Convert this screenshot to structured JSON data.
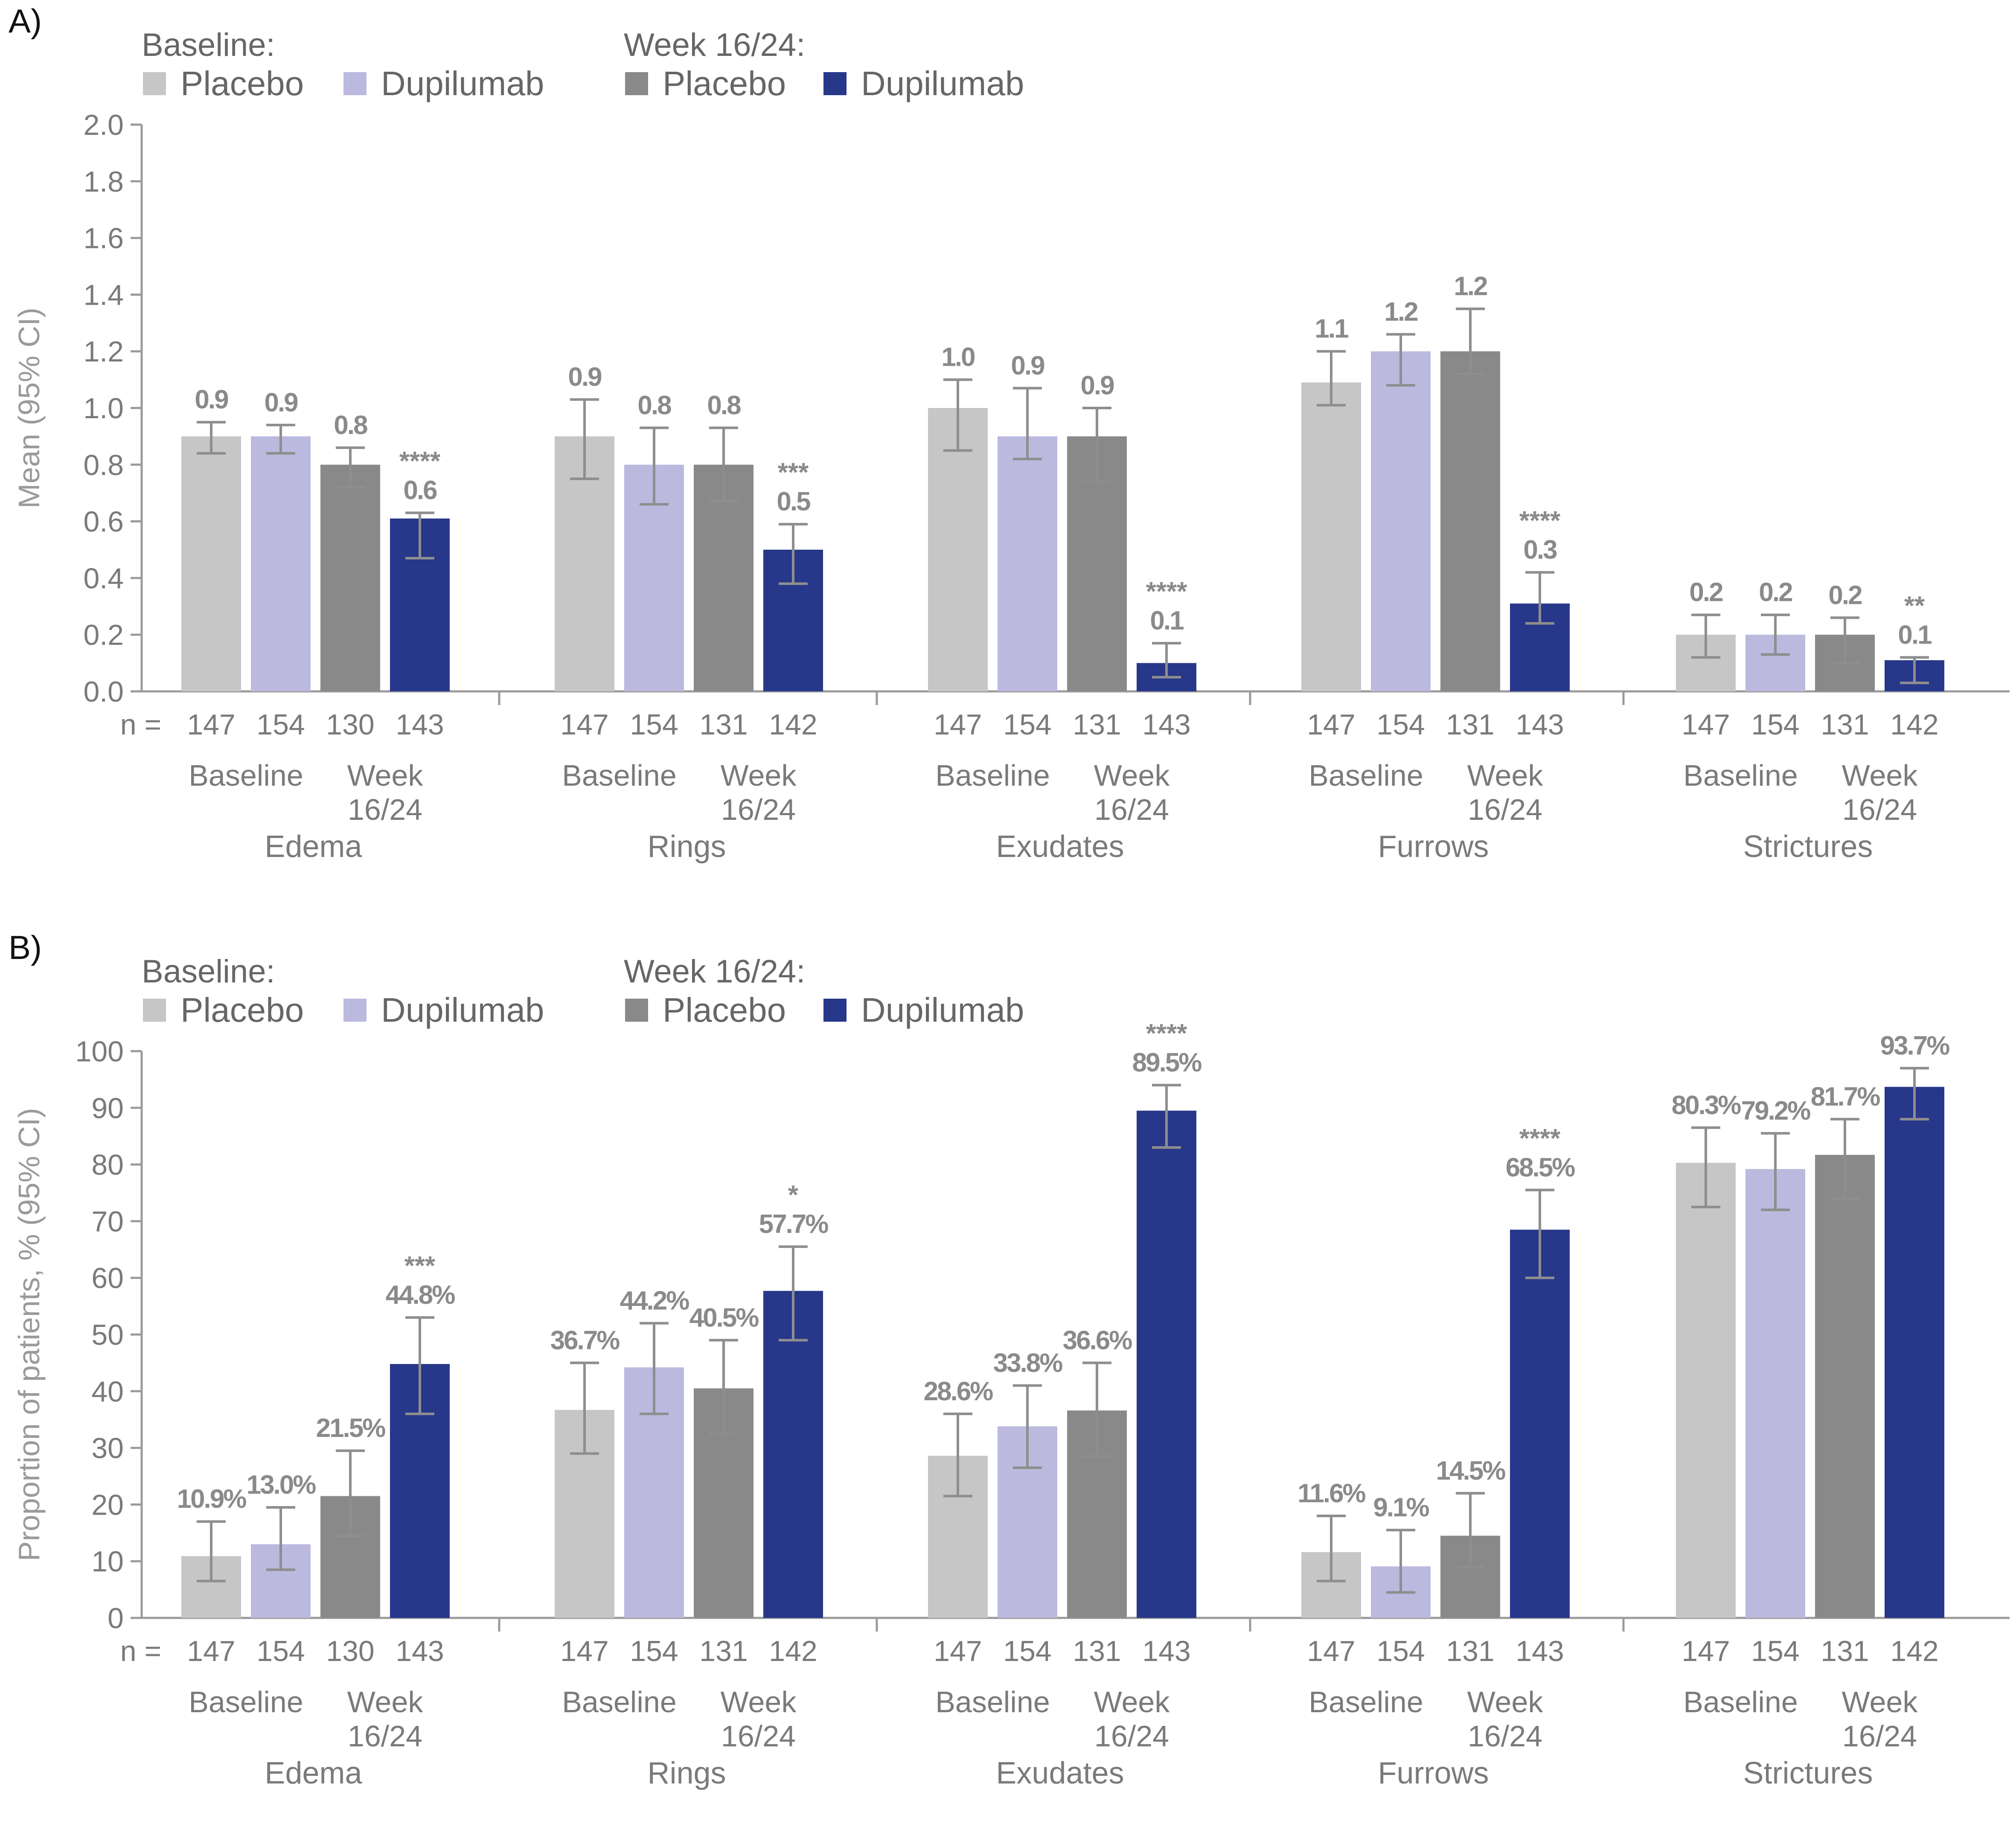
{
  "panels": [
    {
      "letter": "A)",
      "legend": {
        "baseline_label": "Baseline:",
        "week_label": "Week 16/24:",
        "items": [
          "Placebo",
          "Dupilumab",
          "Placebo",
          "Dupilumab"
        ]
      },
      "chart_data": {
        "type": "bar",
        "ylabel": "Mean (95% CI)",
        "ylim": [
          0,
          2.0
        ],
        "yticks": [
          "0.0",
          "0.2",
          "0.4",
          "0.6",
          "0.8",
          "1.0",
          "1.2",
          "1.4",
          "1.6",
          "1.8",
          "2.0"
        ],
        "grid": false,
        "legend_position": "top-left",
        "n_prefix": "n =",
        "timepoints": [
          "Baseline",
          "Week\n16/24"
        ],
        "series": [
          {
            "name": "Baseline Placebo",
            "color": "#c6c6c6"
          },
          {
            "name": "Baseline Dupilumab",
            "color": "#bcb9df"
          },
          {
            "name": "Week 16/24 Placebo",
            "color": "#898989"
          },
          {
            "name": "Week 16/24 Dupilumab",
            "color": "#27378a"
          }
        ],
        "groups": [
          {
            "category": "Edema",
            "values": [
              0.9,
              0.9,
              0.8,
              0.61
            ],
            "ci_low": [
              0.84,
              0.84,
              0.72,
              0.47
            ],
            "ci_high": [
              0.95,
              0.94,
              0.86,
              0.63
            ],
            "labels": [
              "0.9",
              "0.9",
              "0.8",
              "0.6"
            ],
            "sig": [
              "",
              "",
              "",
              "****"
            ],
            "n": [
              "147",
              "154",
              "130",
              "143"
            ]
          },
          {
            "category": "Rings",
            "values": [
              0.9,
              0.8,
              0.8,
              0.5
            ],
            "ci_low": [
              0.75,
              0.66,
              0.67,
              0.38
            ],
            "ci_high": [
              1.03,
              0.93,
              0.93,
              0.59
            ],
            "labels": [
              "0.9",
              "0.8",
              "0.8",
              "0.5"
            ],
            "sig": [
              "",
              "",
              "",
              "***"
            ],
            "n": [
              "147",
              "154",
              "131",
              "142"
            ]
          },
          {
            "category": "Exudates",
            "values": [
              1.0,
              0.9,
              0.9,
              0.1
            ],
            "ci_low": [
              0.85,
              0.82,
              0.74,
              0.05
            ],
            "ci_high": [
              1.1,
              1.07,
              1.0,
              0.17
            ],
            "labels": [
              "1.0",
              "0.9",
              "0.9",
              "0.1"
            ],
            "sig": [
              "",
              "",
              "",
              "****"
            ],
            "n": [
              "147",
              "154",
              "131",
              "143"
            ]
          },
          {
            "category": "Furrows",
            "values": [
              1.09,
              1.2,
              1.2,
              0.31
            ],
            "ci_low": [
              1.01,
              1.08,
              1.12,
              0.24
            ],
            "ci_high": [
              1.2,
              1.26,
              1.35,
              0.42
            ],
            "labels": [
              "1.1",
              "1.2",
              "1.2",
              "0.3"
            ],
            "sig": [
              "",
              "",
              "",
              "****"
            ],
            "n": [
              "147",
              "154",
              "131",
              "143"
            ]
          },
          {
            "category": "Strictures",
            "values": [
              0.2,
              0.2,
              0.2,
              0.11
            ],
            "ci_low": [
              0.12,
              0.13,
              0.1,
              0.03
            ],
            "ci_high": [
              0.27,
              0.27,
              0.26,
              0.12
            ],
            "labels": [
              "0.2",
              "0.2",
              "0.2",
              "0.1"
            ],
            "sig": [
              "",
              "",
              "",
              "**"
            ],
            "n": [
              "147",
              "154",
              "131",
              "142"
            ]
          }
        ]
      }
    },
    {
      "letter": "B)",
      "legend": {
        "baseline_label": "Baseline:",
        "week_label": "Week 16/24:",
        "items": [
          "Placebo",
          "Dupilumab",
          "Placebo",
          "Dupilumab"
        ]
      },
      "chart_data": {
        "type": "bar",
        "ylabel": "Proportion of patients, % (95% CI)",
        "ylim": [
          0,
          100
        ],
        "yticks": [
          "0",
          "10",
          "20",
          "30",
          "40",
          "50",
          "60",
          "70",
          "80",
          "90",
          "100"
        ],
        "grid": false,
        "legend_position": "top-left",
        "n_prefix": "n =",
        "timepoints": [
          "Baseline",
          "Week\n16/24"
        ],
        "series": [
          {
            "name": "Baseline Placebo",
            "color": "#c6c6c6"
          },
          {
            "name": "Baseline Dupilumab",
            "color": "#bcb9df"
          },
          {
            "name": "Week 16/24 Placebo",
            "color": "#898989"
          },
          {
            "name": "Week 16/24 Dupilumab",
            "color": "#27378a"
          }
        ],
        "groups": [
          {
            "category": "Edema",
            "values": [
              10.9,
              13.0,
              21.5,
              44.8
            ],
            "ci_low": [
              6.5,
              8.5,
              14.5,
              36.0
            ],
            "ci_high": [
              17.0,
              19.5,
              29.5,
              53.0
            ],
            "labels": [
              "10.9%",
              "13.0%",
              "21.5%",
              "44.8%"
            ],
            "sig": [
              "",
              "",
              "",
              "***"
            ],
            "n": [
              "147",
              "154",
              "130",
              "143"
            ]
          },
          {
            "category": "Rings",
            "values": [
              36.7,
              44.2,
              40.5,
              57.7
            ],
            "ci_low": [
              29.0,
              36.0,
              32.5,
              49.0
            ],
            "ci_high": [
              45.0,
              52.0,
              49.0,
              65.5
            ],
            "labels": [
              "36.7%",
              "44.2%",
              "40.5%",
              "57.7%"
            ],
            "sig": [
              "",
              "",
              "",
              "*"
            ],
            "n": [
              "147",
              "154",
              "131",
              "142"
            ]
          },
          {
            "category": "Exudates",
            "values": [
              28.6,
              33.8,
              36.6,
              89.5
            ],
            "ci_low": [
              21.5,
              26.5,
              28.5,
              83.0
            ],
            "ci_high": [
              36.0,
              41.0,
              45.0,
              94.0
            ],
            "labels": [
              "28.6%",
              "33.8%",
              "36.6%",
              "89.5%"
            ],
            "sig": [
              "",
              "",
              "",
              "****"
            ],
            "n": [
              "147",
              "154",
              "131",
              "143"
            ]
          },
          {
            "category": "Furrows",
            "values": [
              11.6,
              9.1,
              14.5,
              68.5
            ],
            "ci_low": [
              6.5,
              4.5,
              9.0,
              60.0
            ],
            "ci_high": [
              18.0,
              15.5,
              22.0,
              75.5
            ],
            "labels": [
              "11.6%",
              "9.1%",
              "14.5%",
              "68.5%"
            ],
            "sig": [
              "",
              "",
              "",
              "****"
            ],
            "n": [
              "147",
              "154",
              "131",
              "143"
            ]
          },
          {
            "category": "Strictures",
            "values": [
              80.3,
              79.2,
              81.7,
              93.7
            ],
            "ci_low": [
              72.5,
              72.0,
              74.0,
              88.0
            ],
            "ci_high": [
              86.5,
              85.5,
              88.0,
              97.0
            ],
            "labels": [
              "80.3%",
              "79.2%",
              "81.7%",
              "93.7%"
            ],
            "sig": [
              "",
              "",
              "",
              ""
            ],
            "n": [
              "147",
              "154",
              "131",
              "142"
            ]
          }
        ]
      }
    }
  ]
}
